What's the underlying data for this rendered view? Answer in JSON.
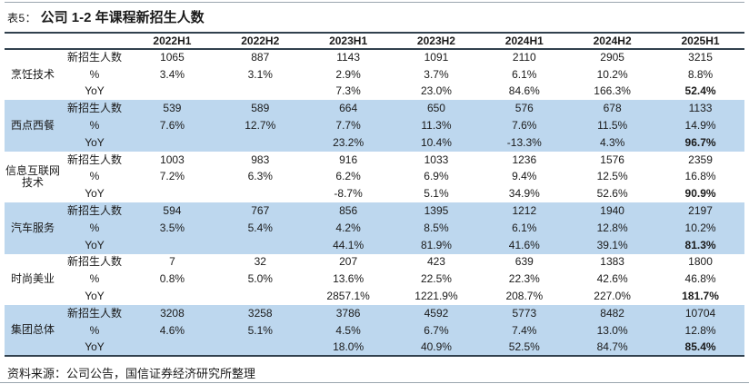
{
  "title": {
    "prefix": "表5：",
    "text": "公司 1-2 年课程新招生人数"
  },
  "table": {
    "columns": [
      "2022H1",
      "2022H2",
      "2023H1",
      "2023H2",
      "2024H1",
      "2024H2",
      "2025H1"
    ],
    "metric_labels": [
      "新招生人数",
      "%",
      "YoY"
    ],
    "groups": [
      {
        "category": "烹饪技术",
        "highlight": false,
        "rows": [
          {
            "label": "新招生人数",
            "values": [
              "1065",
              "887",
              "1143",
              "1091",
              "2110",
              "2905",
              "3215"
            ]
          },
          {
            "label": "%",
            "values": [
              "3.4%",
              "3.1%",
              "2.9%",
              "3.7%",
              "6.1%",
              "10.2%",
              "8.8%"
            ]
          },
          {
            "label": "YoY",
            "values": [
              "",
              "",
              "7.3%",
              "23.0%",
              "84.6%",
              "166.3%",
              "52.4%"
            ]
          }
        ]
      },
      {
        "category": "西点西餐",
        "highlight": true,
        "rows": [
          {
            "label": "新招生人数",
            "values": [
              "539",
              "589",
              "664",
              "650",
              "576",
              "678",
              "1133"
            ]
          },
          {
            "label": "%",
            "values": [
              "7.6%",
              "12.7%",
              "7.7%",
              "11.3%",
              "7.6%",
              "11.5%",
              "14.9%"
            ]
          },
          {
            "label": "YoY",
            "values": [
              "",
              "",
              "23.2%",
              "10.4%",
              "-13.3%",
              "4.3%",
              "96.7%"
            ]
          }
        ]
      },
      {
        "category": "信息互联网技术",
        "highlight": false,
        "rows": [
          {
            "label": "新招生人数",
            "values": [
              "1003",
              "983",
              "916",
              "1033",
              "1236",
              "1576",
              "2359"
            ]
          },
          {
            "label": "%",
            "values": [
              "7.2%",
              "6.3%",
              "6.2%",
              "6.9%",
              "9.4%",
              "12.5%",
              "16.8%"
            ]
          },
          {
            "label": "YoY",
            "values": [
              "",
              "",
              "-8.7%",
              "5.1%",
              "34.9%",
              "52.6%",
              "90.9%"
            ]
          }
        ]
      },
      {
        "category": "汽车服务",
        "highlight": true,
        "rows": [
          {
            "label": "新招生人数",
            "values": [
              "594",
              "767",
              "856",
              "1395",
              "1212",
              "1940",
              "2197"
            ]
          },
          {
            "label": "%",
            "values": [
              "3.5%",
              "5.4%",
              "4.2%",
              "8.5%",
              "6.1%",
              "12.8%",
              "10.2%"
            ]
          },
          {
            "label": "YoY",
            "values": [
              "",
              "",
              "44.1%",
              "81.9%",
              "41.6%",
              "39.1%",
              "81.3%"
            ]
          }
        ]
      },
      {
        "category": "时尚美业",
        "highlight": false,
        "rows": [
          {
            "label": "新招生人数",
            "values": [
              "7",
              "32",
              "207",
              "423",
              "639",
              "1383",
              "1800"
            ]
          },
          {
            "label": "%",
            "values": [
              "0.8%",
              "5.0%",
              "13.6%",
              "22.5%",
              "22.3%",
              "42.6%",
              "46.8%"
            ]
          },
          {
            "label": "YoY",
            "values": [
              "",
              "",
              "2857.1%",
              "1221.9%",
              "208.7%",
              "227.0%",
              "181.7%"
            ]
          }
        ]
      },
      {
        "category": "集团总体",
        "highlight": true,
        "rows": [
          {
            "label": "新招生人数",
            "values": [
              "3208",
              "3258",
              "3786",
              "4592",
              "5773",
              "8482",
              "10704"
            ]
          },
          {
            "label": "%",
            "values": [
              "4.6%",
              "5.1%",
              "4.5%",
              "6.7%",
              "7.4%",
              "13.0%",
              "12.8%"
            ]
          },
          {
            "label": "YoY",
            "values": [
              "",
              "",
              "18.0%",
              "40.9%",
              "52.5%",
              "84.7%",
              "85.4%"
            ]
          }
        ]
      }
    ],
    "emphasis": {
      "row_label": "YoY",
      "column": "2025H1"
    }
  },
  "source": "资料来源：公司公告，国信证券经济研究所整理",
  "colors": {
    "highlight_row": "#BDD7EE",
    "table_border": "#31414E",
    "page_rule": "#9AA5AE",
    "text": "#1A1A1A"
  }
}
